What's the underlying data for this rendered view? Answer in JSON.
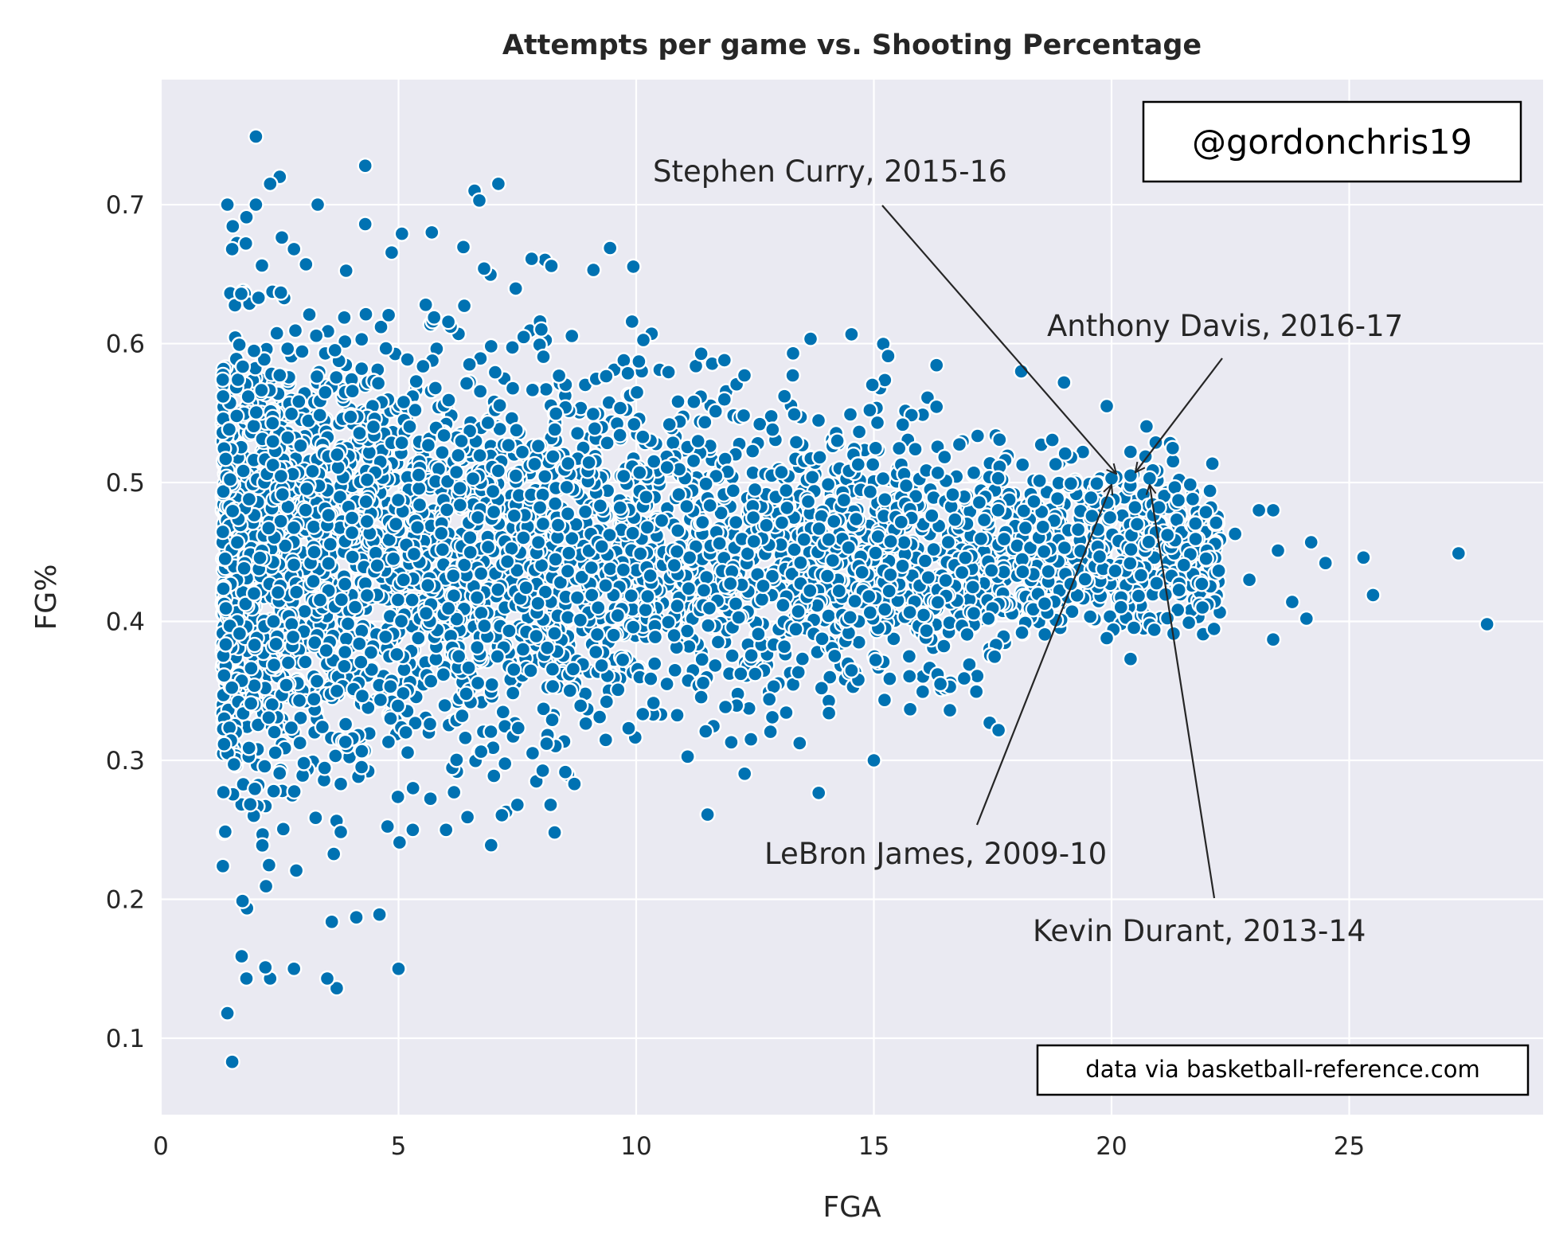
{
  "chart_data": {
    "type": "scatter",
    "title": "Attempts per game vs. Shooting Percentage",
    "xlabel": "FGA",
    "ylabel": "FG%",
    "xlim": [
      0,
      29.1
    ],
    "ylim": [
      0.045,
      0.79
    ],
    "xticks": [
      0,
      5,
      10,
      15,
      20,
      25
    ],
    "yticks": [
      0.1,
      0.2,
      0.3,
      0.4,
      0.5,
      0.6,
      0.7
    ],
    "grid": true,
    "point_color": "#0072b2",
    "point_edge_color": "#ffffff",
    "background_color": "#eaeaf2",
    "watermark": "@gordonchris19",
    "credit": "data via basketball-reference.com",
    "outliers": [
      {
        "x": 2.0,
        "y": 0.749
      },
      {
        "x": 4.3,
        "y": 0.728
      },
      {
        "x": 1.4,
        "y": 0.7
      },
      {
        "x": 2.5,
        "y": 0.72
      },
      {
        "x": 2.3,
        "y": 0.715
      },
      {
        "x": 7.1,
        "y": 0.715
      },
      {
        "x": 6.6,
        "y": 0.71
      },
      {
        "x": 6.7,
        "y": 0.703
      },
      {
        "x": 3.3,
        "y": 0.7
      },
      {
        "x": 2.0,
        "y": 0.7
      },
      {
        "x": 1.8,
        "y": 0.691
      },
      {
        "x": 4.3,
        "y": 0.686
      },
      {
        "x": 5.7,
        "y": 0.68
      },
      {
        "x": 9.1,
        "y": 0.653
      },
      {
        "x": 7.8,
        "y": 0.661
      },
      {
        "x": 6.8,
        "y": 0.654
      },
      {
        "x": 1.5,
        "y": 0.668
      },
      {
        "x": 2.8,
        "y": 0.668
      },
      {
        "x": 27.9,
        "y": 0.398
      },
      {
        "x": 27.3,
        "y": 0.449
      },
      {
        "x": 25.5,
        "y": 0.419
      },
      {
        "x": 25.3,
        "y": 0.446
      },
      {
        "x": 24.5,
        "y": 0.442
      },
      {
        "x": 24.2,
        "y": 0.457
      },
      {
        "x": 24.1,
        "y": 0.402
      },
      {
        "x": 23.8,
        "y": 0.414
      },
      {
        "x": 23.5,
        "y": 0.451
      },
      {
        "x": 23.4,
        "y": 0.387
      },
      {
        "x": 23.4,
        "y": 0.48
      },
      {
        "x": 23.1,
        "y": 0.48
      },
      {
        "x": 22.9,
        "y": 0.43
      },
      {
        "x": 22.6,
        "y": 0.463
      },
      {
        "x": 22.2,
        "y": 0.471
      },
      {
        "x": 21.9,
        "y": 0.427
      },
      {
        "x": 20.4,
        "y": 0.373
      },
      {
        "x": 19.9,
        "y": 0.388
      },
      {
        "x": 20.9,
        "y": 0.394
      },
      {
        "x": 15.0,
        "y": 0.3
      },
      {
        "x": 11.5,
        "y": 0.261
      },
      {
        "x": 12.0,
        "y": 0.313
      },
      {
        "x": 8.2,
        "y": 0.268
      },
      {
        "x": 8.7,
        "y": 0.283
      },
      {
        "x": 7.5,
        "y": 0.268
      },
      {
        "x": 6.0,
        "y": 0.25
      },
      {
        "x": 5.3,
        "y": 0.25
      },
      {
        "x": 4.6,
        "y": 0.189
      },
      {
        "x": 5.0,
        "y": 0.15
      },
      {
        "x": 3.7,
        "y": 0.136
      },
      {
        "x": 3.5,
        "y": 0.143
      },
      {
        "x": 2.8,
        "y": 0.15
      },
      {
        "x": 1.4,
        "y": 0.118
      },
      {
        "x": 1.5,
        "y": 0.083
      },
      {
        "x": 1.8,
        "y": 0.143
      },
      {
        "x": 2.3,
        "y": 0.143
      },
      {
        "x": 1.7,
        "y": 0.159
      },
      {
        "x": 2.2,
        "y": 0.151
      },
      {
        "x": 16.6,
        "y": 0.353
      },
      {
        "x": 16.9,
        "y": 0.359
      },
      {
        "x": 16.4,
        "y": 0.355
      },
      {
        "x": 12.8,
        "y": 0.344
      },
      {
        "x": 13.9,
        "y": 0.352
      },
      {
        "x": 19.0,
        "y": 0.572
      },
      {
        "x": 18.1,
        "y": 0.58
      },
      {
        "x": 15.3,
        "y": 0.591
      },
      {
        "x": 19.9,
        "y": 0.555
      },
      {
        "x": 13.3,
        "y": 0.593
      },
      {
        "x": 20.1,
        "y": 0.504
      },
      {
        "x": 20.4,
        "y": 0.505
      },
      {
        "x": 20.0,
        "y": 0.503
      },
      {
        "x": 20.8,
        "y": 0.503
      }
    ],
    "annotations": [
      {
        "text": "Stephen Curry, 2015-16",
        "x": 20.1,
        "y": 0.504
      },
      {
        "text": "Anthony Davis, 2016-17",
        "x": 20.4,
        "y": 0.505
      },
      {
        "text": "LeBron James, 2009-10",
        "x": 20.0,
        "y": 0.503
      },
      {
        "text": "Kevin Durant, 2013-14",
        "x": 20.8,
        "y": 0.503
      }
    ]
  }
}
